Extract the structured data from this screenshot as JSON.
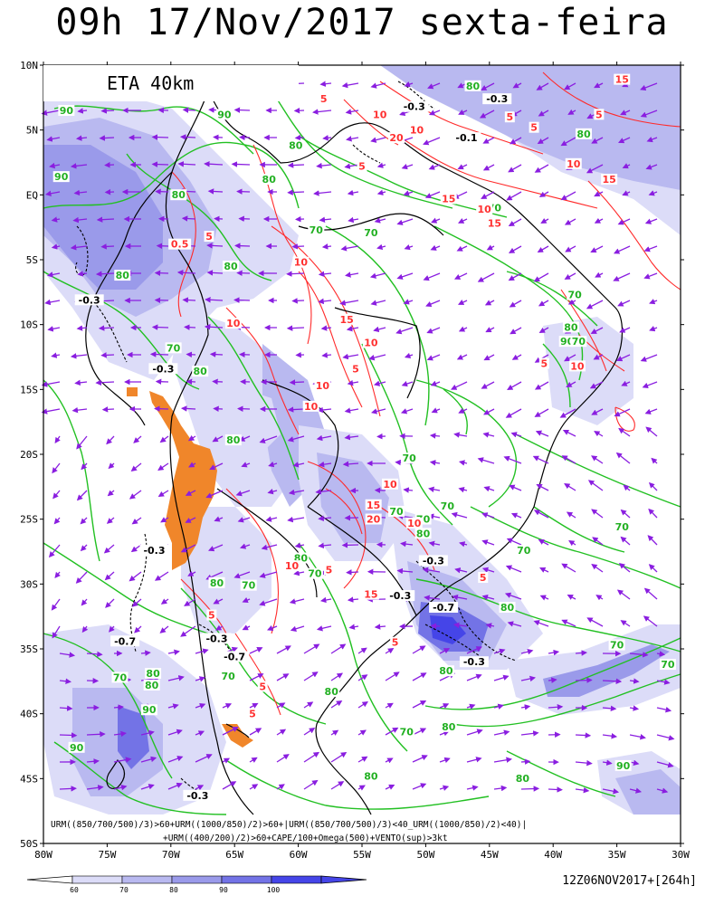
{
  "title": "09h 17/Nov/2017 sexta-feira",
  "model_label": "ETA 40km",
  "run_label": "12Z06NOV2017+[264h]",
  "legend_lines": [
    "URM((850/700/500)/3)>60+URM((1000/850)/2)>60+|URM((850/700/500)/3)<40_URM((1000/850)/2)<40)|",
    "+URM((400/200)/2)>60+CAPE/100+Omega(500)+VENTO(sup)>3kt"
  ],
  "lat_ticks": [
    "10N",
    "5N",
    "EQ",
    "5S",
    "10S",
    "15S",
    "20S",
    "25S",
    "30S",
    "35S",
    "40S",
    "45S",
    "50S"
  ],
  "lon_ticks": [
    "80W",
    "75W",
    "70W",
    "65W",
    "60W",
    "55W",
    "50W",
    "45W",
    "40W",
    "35W",
    "30W"
  ],
  "colorbar": {
    "labels": [
      "60",
      "70",
      "80",
      "90",
      "100"
    ],
    "colors": [
      "#dcdcf8",
      "#b9b9f0",
      "#9a9aea",
      "#7373e6",
      "#4545e8"
    ]
  },
  "contour_labels_green": [
    {
      "text": "90",
      "lon": -78.2,
      "lat": 6.3
    },
    {
      "text": "90",
      "lon": -78.6,
      "lat": 1.2
    },
    {
      "text": "80",
      "lon": -69.4,
      "lat": -0.2
    },
    {
      "text": "80",
      "lon": -73.8,
      "lat": -6.4
    },
    {
      "text": "80",
      "lon": -62.3,
      "lat": 1.0
    },
    {
      "text": "80",
      "lon": -60.2,
      "lat": 3.6
    },
    {
      "text": "90",
      "lon": -65.8,
      "lat": 6.0
    },
    {
      "text": "80",
      "lon": -65.3,
      "lat": -5.7
    },
    {
      "text": "70",
      "lon": -58.6,
      "lat": -2.9
    },
    {
      "text": "70",
      "lon": -54.3,
      "lat": -3.1
    },
    {
      "text": "80",
      "lon": -46.3,
      "lat": 8.2
    },
    {
      "text": "80",
      "lon": -37.6,
      "lat": 4.5
    },
    {
      "text": "70",
      "lon": -44.6,
      "lat": -1.2
    },
    {
      "text": "70",
      "lon": -38.3,
      "lat": -7.9
    },
    {
      "text": "80",
      "lon": -38.6,
      "lat": -10.4
    },
    {
      "text": "90",
      "lon": -38.9,
      "lat": -11.5
    },
    {
      "text": "70",
      "lon": -38.0,
      "lat": -11.5
    },
    {
      "text": "70",
      "lon": -69.8,
      "lat": -12.0
    },
    {
      "text": "80",
      "lon": -67.7,
      "lat": -13.8
    },
    {
      "text": "80",
      "lon": -65.1,
      "lat": -19.1
    },
    {
      "text": "70",
      "lon": -51.3,
      "lat": -20.5
    },
    {
      "text": "70",
      "lon": -52.3,
      "lat": -24.6
    },
    {
      "text": "70",
      "lon": -48.3,
      "lat": -24.2
    },
    {
      "text": "70",
      "lon": -50.2,
      "lat": -25.2
    },
    {
      "text": "80",
      "lon": -50.2,
      "lat": -26.3
    },
    {
      "text": "80",
      "lon": -59.8,
      "lat": -28.2
    },
    {
      "text": "70",
      "lon": -58.7,
      "lat": -29.4
    },
    {
      "text": "80",
      "lon": -66.4,
      "lat": -30.1
    },
    {
      "text": "70",
      "lon": -63.9,
      "lat": -30.3
    },
    {
      "text": "70",
      "lon": -42.3,
      "lat": -27.6
    },
    {
      "text": "70",
      "lon": -34.6,
      "lat": -25.8
    },
    {
      "text": "80",
      "lon": -43.6,
      "lat": -32.0
    },
    {
      "text": "80",
      "lon": -48.4,
      "lat": -36.9
    },
    {
      "text": "70",
      "lon": -31.0,
      "lat": -36.4
    },
    {
      "text": "70",
      "lon": -35.0,
      "lat": -34.9
    },
    {
      "text": "80",
      "lon": -57.4,
      "lat": -38.5
    },
    {
      "text": "70",
      "lon": -65.5,
      "lat": -37.3
    },
    {
      "text": "70",
      "lon": -74.0,
      "lat": -37.4
    },
    {
      "text": "80",
      "lon": -71.4,
      "lat": -37.1
    },
    {
      "text": "80",
      "lon": -71.5,
      "lat": -38.0
    },
    {
      "text": "90",
      "lon": -71.7,
      "lat": -39.9
    },
    {
      "text": "70",
      "lon": -51.5,
      "lat": -41.6
    },
    {
      "text": "80",
      "lon": -48.2,
      "lat": -41.2
    },
    {
      "text": "90",
      "lon": -77.4,
      "lat": -42.8
    },
    {
      "text": "80",
      "lon": -54.3,
      "lat": -45.0
    },
    {
      "text": "80",
      "lon": -42.4,
      "lat": -45.2
    },
    {
      "text": "90",
      "lon": -34.5,
      "lat": -44.2
    }
  ],
  "contour_labels_red": [
    {
      "text": "15",
      "lon": -34.6,
      "lat": 8.7
    },
    {
      "text": "5",
      "lon": -36.4,
      "lat": 6.0
    },
    {
      "text": "10",
      "lon": -50.7,
      "lat": 4.8
    },
    {
      "text": "5",
      "lon": -43.4,
      "lat": 5.8
    },
    {
      "text": "10",
      "lon": -38.4,
      "lat": 2.2
    },
    {
      "text": "5",
      "lon": -41.5,
      "lat": 5.0
    },
    {
      "text": "15",
      "lon": -35.6,
      "lat": 1.0
    },
    {
      "text": "15",
      "lon": -48.2,
      "lat": -0.5
    },
    {
      "text": "10",
      "lon": -45.4,
      "lat": -1.3
    },
    {
      "text": "15",
      "lon": -44.6,
      "lat": -2.4
    },
    {
      "text": "5",
      "lon": -55.0,
      "lat": 2.0
    },
    {
      "text": "5",
      "lon": -58.0,
      "lat": 7.2
    },
    {
      "text": "10",
      "lon": -53.6,
      "lat": 6.0
    },
    {
      "text": "20",
      "lon": -52.3,
      "lat": 4.2
    },
    {
      "text": "10",
      "lon": -59.8,
      "lat": -5.4
    },
    {
      "text": "5",
      "lon": -67.0,
      "lat": -3.4
    },
    {
      "text": "0.5",
      "lon": -69.3,
      "lat": -4.0
    },
    {
      "text": "15",
      "lon": -56.2,
      "lat": -9.8
    },
    {
      "text": "10",
      "lon": -65.1,
      "lat": -10.1
    },
    {
      "text": "10",
      "lon": -54.3,
      "lat": -11.6
    },
    {
      "text": "10",
      "lon": -58.1,
      "lat": -14.9
    },
    {
      "text": "5",
      "lon": -55.5,
      "lat": -13.6
    },
    {
      "text": "10",
      "lon": -59.0,
      "lat": -16.5
    },
    {
      "text": "10",
      "lon": -52.8,
      "lat": -22.5
    },
    {
      "text": "15",
      "lon": -54.1,
      "lat": -24.1
    },
    {
      "text": "20",
      "lon": -54.1,
      "lat": -25.2
    },
    {
      "text": "10",
      "lon": -50.9,
      "lat": -25.5
    },
    {
      "text": "10",
      "lon": -60.5,
      "lat": -28.8
    },
    {
      "text": "5",
      "lon": -57.6,
      "lat": -29.1
    },
    {
      "text": "15",
      "lon": -54.3,
      "lat": -31.0
    },
    {
      "text": "5",
      "lon": -66.8,
      "lat": -32.6
    },
    {
      "text": "5",
      "lon": -52.4,
      "lat": -34.7
    },
    {
      "text": "5",
      "lon": -62.8,
      "lat": -38.1
    },
    {
      "text": "5",
      "lon": -63.6,
      "lat": -40.2
    },
    {
      "text": "5",
      "lon": -45.5,
      "lat": -29.7
    },
    {
      "text": "10",
      "lon": -38.1,
      "lat": -13.4
    },
    {
      "text": "5",
      "lon": -40.7,
      "lat": -13.2
    }
  ],
  "contour_labels_black": [
    {
      "text": "-0.3",
      "lon": -44.4,
      "lat": 7.2
    },
    {
      "text": "-0.3",
      "lon": -50.9,
      "lat": 6.6
    },
    {
      "text": "-0.1",
      "lon": -46.8,
      "lat": 4.2
    },
    {
      "text": "-0.3",
      "lon": -76.4,
      "lat": -8.3
    },
    {
      "text": "-0.3",
      "lon": -70.6,
      "lat": -13.6
    },
    {
      "text": "-0.3",
      "lon": -71.3,
      "lat": -27.6
    },
    {
      "text": "-0.3",
      "lon": -49.4,
      "lat": -28.4
    },
    {
      "text": "-0.3",
      "lon": -52.0,
      "lat": -31.1
    },
    {
      "text": "-0.7",
      "lon": -48.6,
      "lat": -32.0
    },
    {
      "text": "-0.3",
      "lon": -66.4,
      "lat": -34.4
    },
    {
      "text": "-0.7",
      "lon": -65.0,
      "lat": -35.8
    },
    {
      "text": "-0.7",
      "lon": -73.6,
      "lat": -34.6
    },
    {
      "text": "-0.3",
      "lon": -46.2,
      "lat": -36.2
    },
    {
      "text": "-0.3",
      "lon": -67.9,
      "lat": -46.5
    }
  ]
}
